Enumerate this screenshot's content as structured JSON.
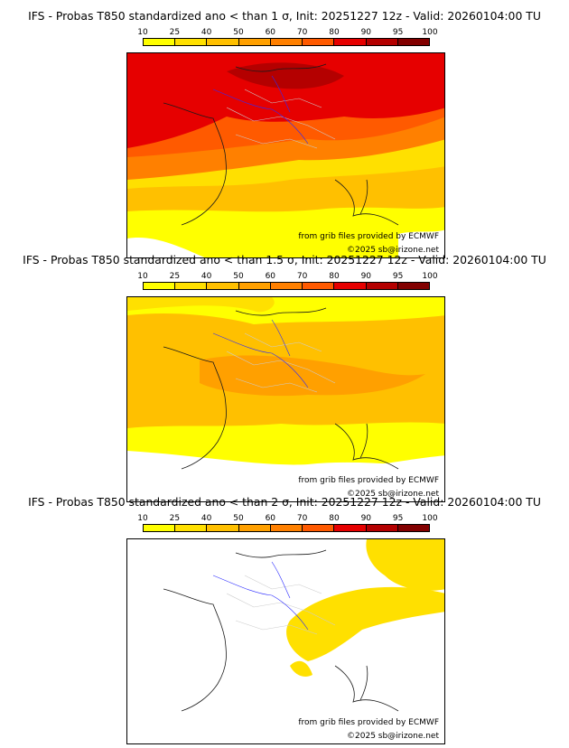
{
  "legend": {
    "ticks": [
      "10",
      "25",
      "40",
      "50",
      "60",
      "70",
      "80",
      "90",
      "95",
      "100"
    ],
    "colors": [
      "#ffff00",
      "#ffe000",
      "#ffc000",
      "#ffa000",
      "#ff8000",
      "#ff5a00",
      "#e60000",
      "#b40000",
      "#820000",
      "#4b0000"
    ]
  },
  "panels": [
    {
      "title": "IFS - Probas T850  standardized ano < than 1 σ, Init: 20251227 12z - Valid: 20260104:00 TU",
      "credit": "from grib files provided by ECMWF",
      "copyright": "©2025 sb@irizone.net"
    },
    {
      "title": "IFS - Probas T850  standardized ano < than 1.5 σ, Init: 20251227 12z - Valid: 20260104:00 TU",
      "credit": "from grib files provided by ECMWF",
      "copyright": "©2025 sb@irizone.net"
    },
    {
      "title": "IFS - Probas T850  standardized ano < than 2 σ, Init: 20251227 12z - Valid: 20260104:00 TU",
      "credit": "from grib files provided by ECMWF",
      "copyright": "©2025 sb@irizone.net"
    }
  ]
}
